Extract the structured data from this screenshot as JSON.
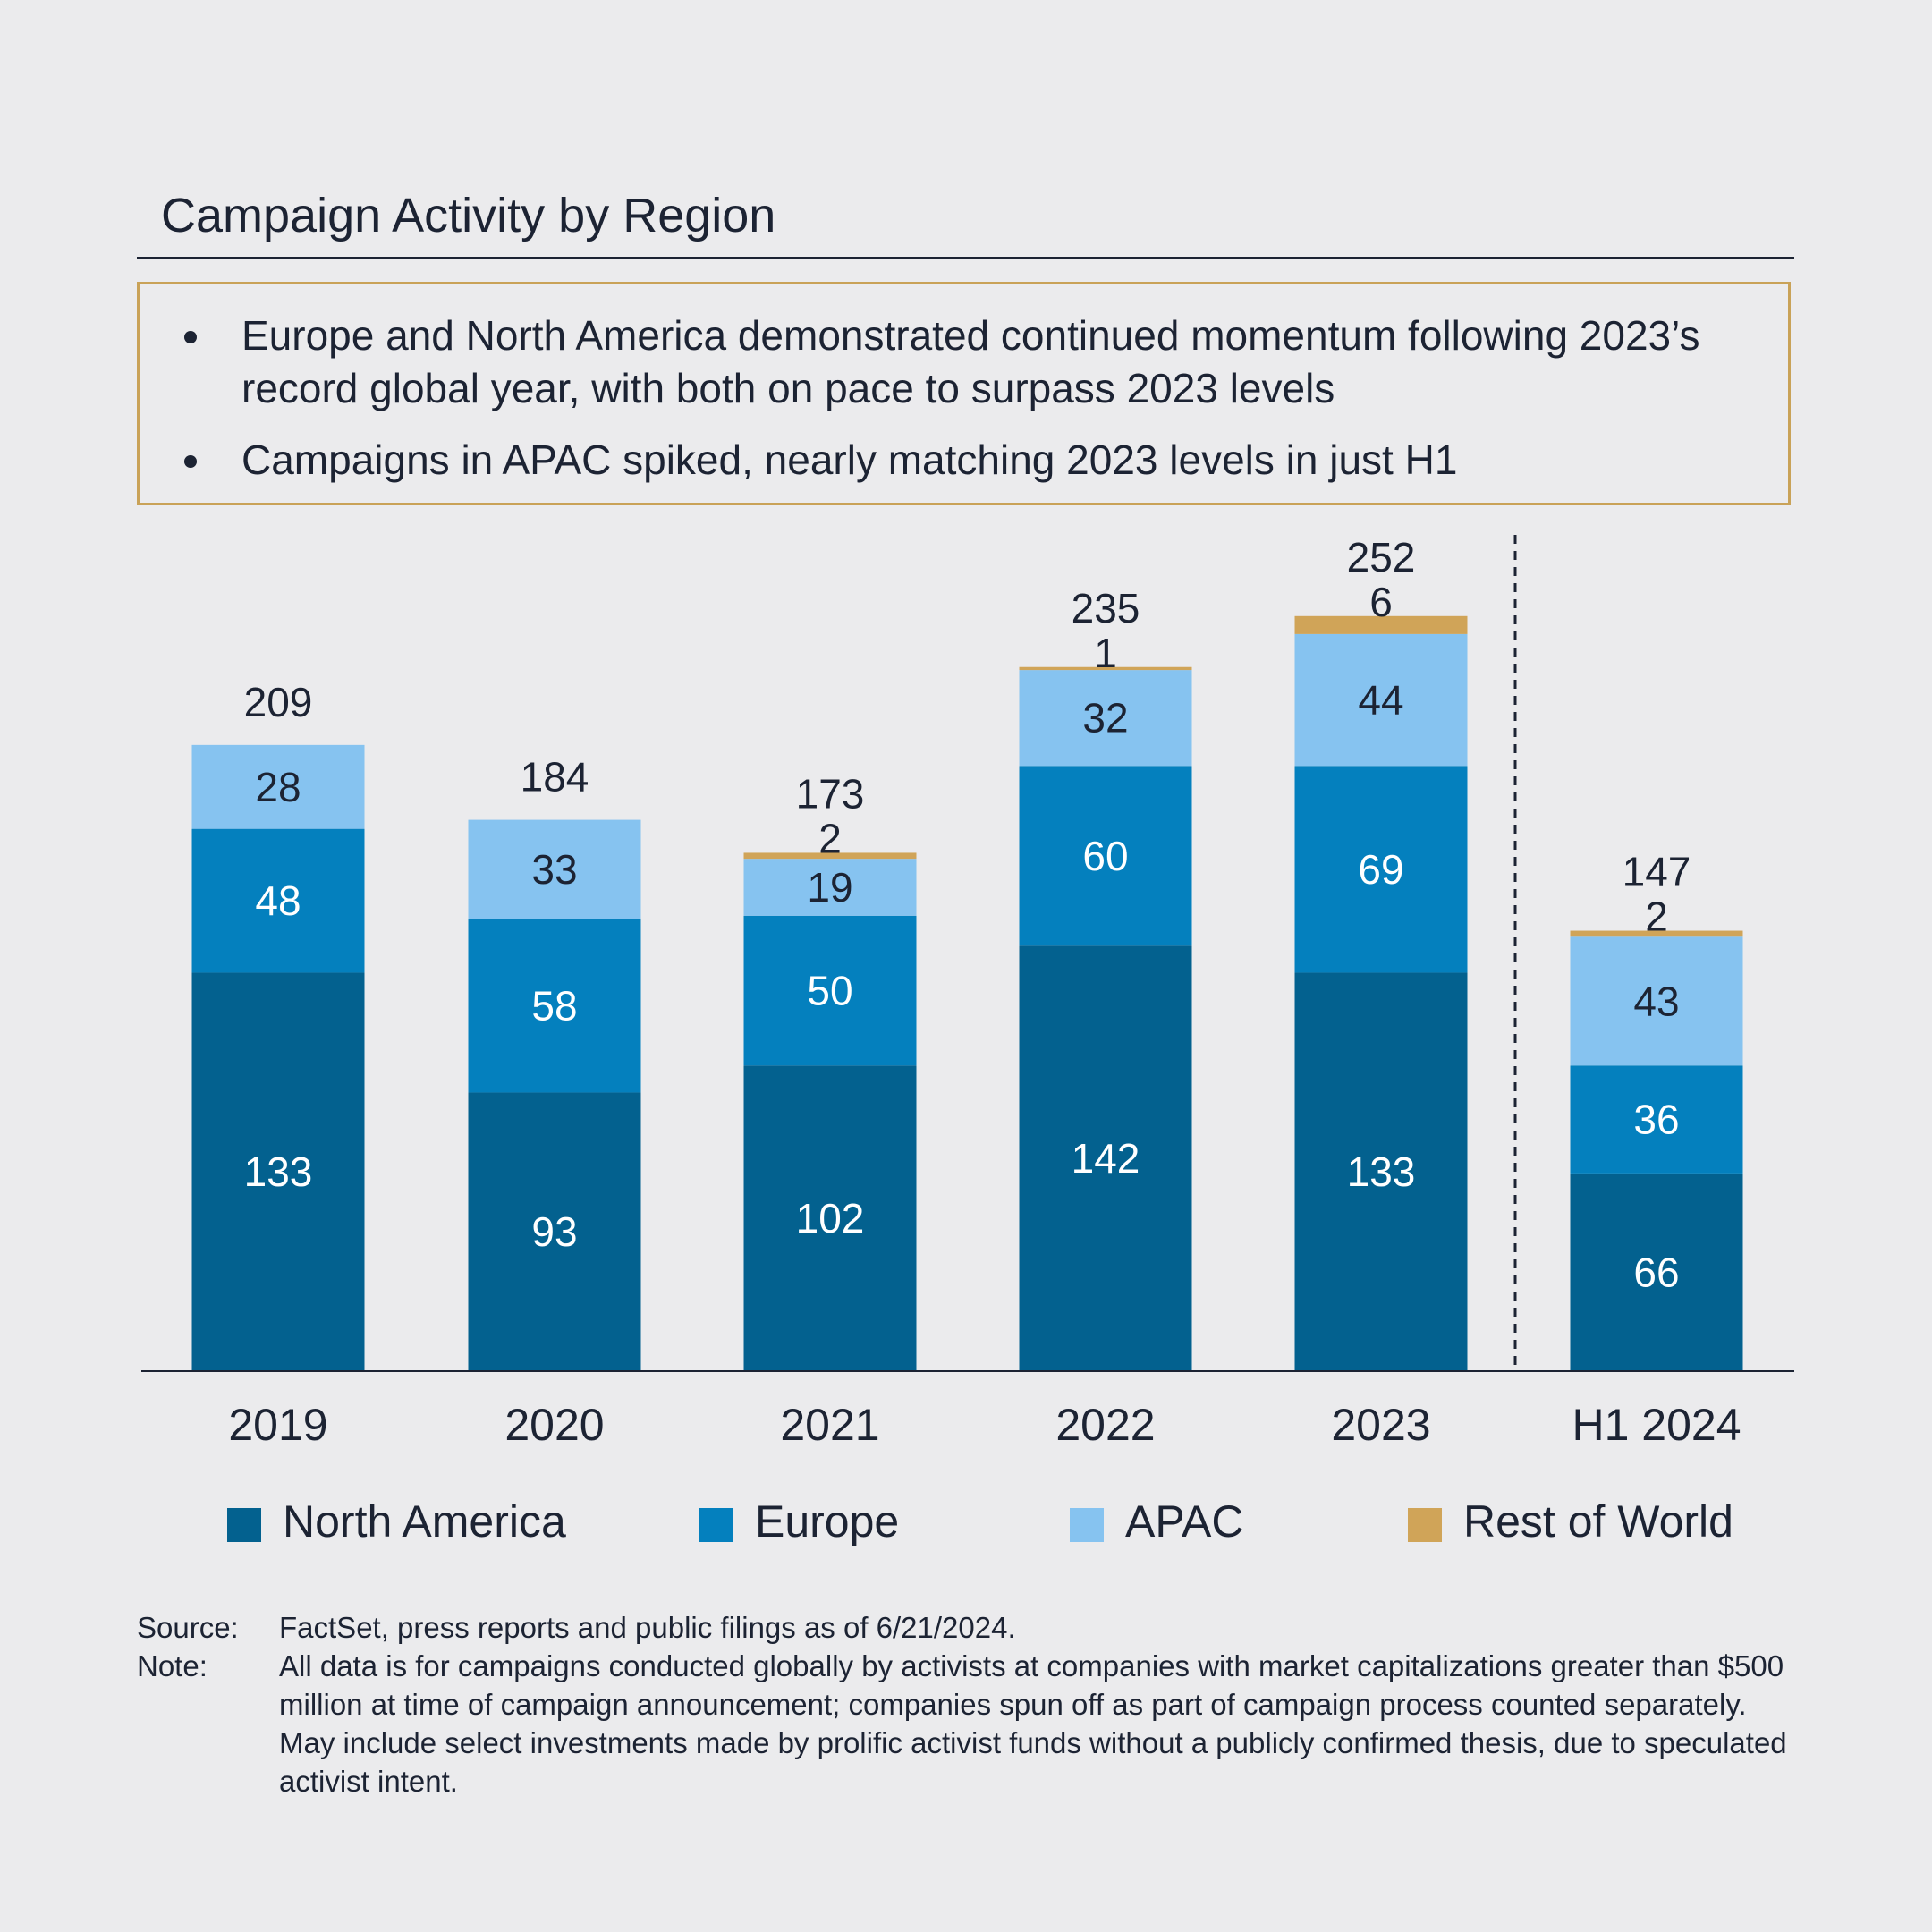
{
  "header": {
    "title": "Campaign Activity by Region"
  },
  "callout": {
    "bullets": [
      "Europe and North America demonstrated continued momentum following 2023’s record global year, with both on pace to surpass 2023 levels",
      "Campaigns in APAC spiked, nearly matching 2023 levels in just H1"
    ]
  },
  "chart_data": {
    "type": "bar",
    "stacked": true,
    "categories": [
      "2019",
      "2020",
      "2021",
      "2022",
      "2023",
      "H1 2024"
    ],
    "totals": [
      209,
      184,
      173,
      235,
      252,
      147
    ],
    "series": [
      {
        "name": "North America",
        "color": "#03618f",
        "label_color": "#ffffff",
        "values": [
          133,
          93,
          102,
          142,
          133,
          66
        ]
      },
      {
        "name": "Europe",
        "color": "#0480be",
        "label_color": "#ffffff",
        "values": [
          48,
          58,
          50,
          60,
          69,
          36
        ]
      },
      {
        "name": "APAC",
        "color": "#86c3f0",
        "label_color": "#1c2333",
        "values": [
          28,
          33,
          19,
          32,
          44,
          43
        ]
      },
      {
        "name": "Rest of World",
        "color": "#d0a458",
        "label_color": "#1c2333",
        "values": [
          0,
          0,
          2,
          1,
          6,
          2
        ]
      }
    ],
    "ylim": [
      0,
      280
    ],
    "grid": false,
    "divider_before_category": "H1 2024",
    "legend_position": "bottom"
  },
  "footer": {
    "source_key": "Source:",
    "source_text": "FactSet, press reports and public filings as of 6/21/2024.",
    "note_key": "Note:",
    "note_text": "All data is for campaigns conducted globally by activists at companies with market capitalizations greater than $500 million at time of campaign announcement; companies spun off as part of campaign process counted separately. May include select investments made by prolific activist funds without a publicly confirmed thesis, due to speculated activist intent."
  }
}
